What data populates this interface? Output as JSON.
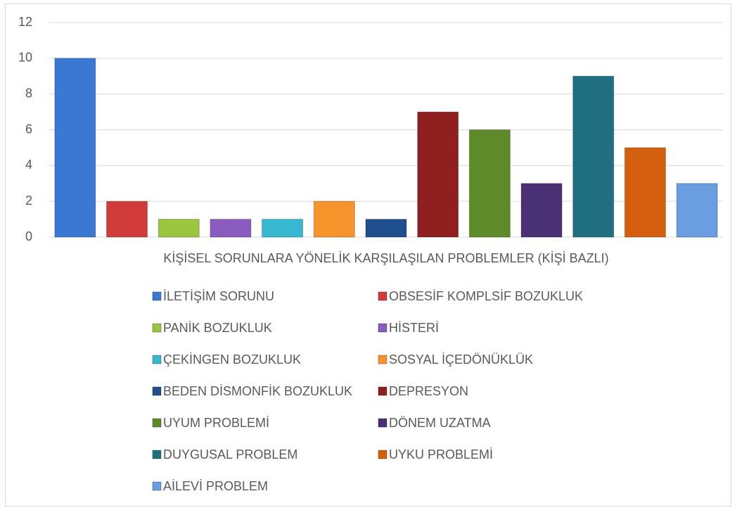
{
  "chart_data": {
    "type": "bar",
    "categories": [
      "KİŞİSEL SORUNLARA YÖNELİK KARŞILAŞILAN PROBLEMLER (KİŞİ BAZLI)"
    ],
    "series": [
      {
        "name": "İLETİŞİM SORUNU",
        "color": "#3a78d4",
        "values": [
          10
        ]
      },
      {
        "name": "OBSESİF KOMPLSİF BOZUKLUK",
        "color": "#d23b3b",
        "values": [
          2
        ]
      },
      {
        "name": "PANİK BOZUKLUK",
        "color": "#9bc43f",
        "values": [
          1
        ]
      },
      {
        "name": "HİSTERİ",
        "color": "#8a5cc0",
        "values": [
          1
        ]
      },
      {
        "name": "ÇEKİNGEN BOZUKLUK",
        "color": "#37b8d0",
        "values": [
          1
        ]
      },
      {
        "name": "SOSYAL İÇEDÖNÜKLÜK",
        "color": "#f7932b",
        "values": [
          2
        ]
      },
      {
        "name": "BEDEN DİSMONFİK BOZUKLUK",
        "color": "#1f4e8c",
        "values": [
          1
        ]
      },
      {
        "name": "DEPRESYON",
        "color": "#8e2020",
        "values": [
          7
        ]
      },
      {
        "name": "UYUM PROBLEMİ",
        "color": "#5e8a2a",
        "values": [
          6
        ]
      },
      {
        "name": "DÖNEM UZATMA",
        "color": "#4a3174",
        "values": [
          3
        ]
      },
      {
        "name": "DUYGUSAL PROBLEM",
        "color": "#1f6f80",
        "values": [
          9
        ]
      },
      {
        "name": "UYKU PROBLEMİ",
        "color": "#d4600f",
        "values": [
          5
        ]
      },
      {
        "name": "AİLEVİ PROBLEM",
        "color": "#6a9ee0",
        "values": [
          3
        ]
      }
    ],
    "ylim": [
      0,
      12
    ],
    "yticks": [
      0,
      2,
      4,
      6,
      8,
      10,
      12
    ],
    "grid": true,
    "legend": "bottom"
  }
}
